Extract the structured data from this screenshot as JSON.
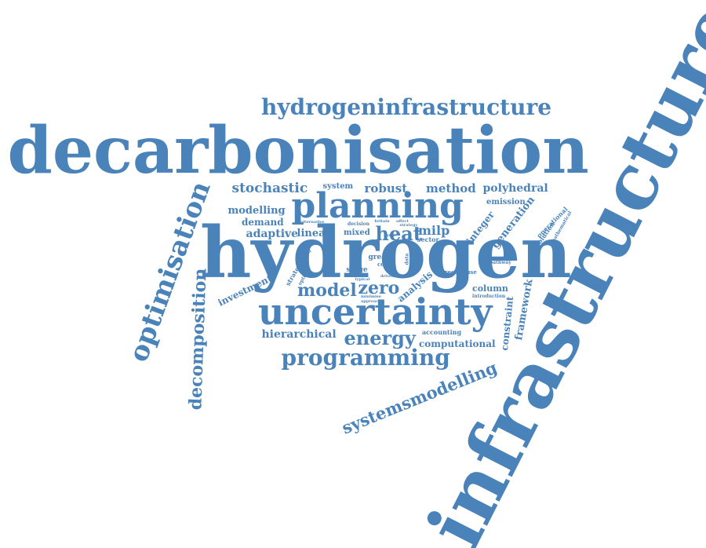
{
  "color": "#4a83b9",
  "words": [
    {
      "key": "decarbonisation",
      "text": "decarbonisation",
      "importance": 1.0,
      "orientation": "horizontal"
    },
    {
      "key": "infrastructure",
      "text": "infrastructure",
      "importance": 1.0,
      "orientation": "vertical"
    },
    {
      "key": "hydrogen",
      "text": "hydrogen",
      "importance": 0.95,
      "orientation": "horizontal"
    },
    {
      "key": "uncertainty",
      "text": "uncertainty",
      "importance": 0.65,
      "orientation": "horizontal"
    },
    {
      "key": "planning",
      "text": "planning",
      "importance": 0.55,
      "orientation": "horizontal"
    },
    {
      "key": "optimisation",
      "text": "optimisation",
      "importance": 0.45,
      "orientation": "vertical"
    },
    {
      "key": "hydrogeninfrastructure",
      "text": "hydrogeninfrastructure",
      "importance": 0.35,
      "orientation": "horizontal"
    },
    {
      "key": "programming",
      "text": "programming",
      "importance": 0.35,
      "orientation": "horizontal"
    },
    {
      "key": "decomposition",
      "text": "decomposition",
      "importance": 0.3,
      "orientation": "vertical"
    },
    {
      "key": "systemsmodelling",
      "text": "systemsmodelling",
      "importance": 0.3,
      "orientation": "diagonal"
    },
    {
      "key": "energy",
      "text": "energy",
      "importance": 0.3,
      "orientation": "horizontal"
    },
    {
      "key": "heat",
      "text": "heat",
      "importance": 0.3,
      "orientation": "horizontal"
    },
    {
      "key": "zero",
      "text": "zero",
      "importance": 0.25,
      "orientation": "horizontal"
    },
    {
      "key": "model",
      "text": "model",
      "importance": 0.25,
      "orientation": "horizontal"
    },
    {
      "key": "stochastic",
      "text": "stochastic",
      "importance": 0.2,
      "orientation": "horizontal"
    },
    {
      "key": "robust",
      "text": "robust",
      "importance": 0.2,
      "orientation": "horizontal"
    },
    {
      "key": "method",
      "text": "method",
      "importance": 0.2,
      "orientation": "horizontal"
    },
    {
      "key": "polyhedral",
      "text": "polyhedral",
      "importance": 0.2,
      "orientation": "horizontal"
    },
    {
      "key": "hierarchical",
      "text": "hierarchical",
      "importance": 0.2,
      "orientation": "horizontal"
    },
    {
      "key": "framework",
      "text": "framework",
      "importance": 0.15,
      "orientation": "vertical"
    },
    {
      "key": "constraint",
      "text": "constraint",
      "importance": 0.15,
      "orientation": "vertical"
    },
    {
      "key": "generation",
      "text": "generation",
      "importance": 0.15,
      "orientation": "diagonal"
    },
    {
      "key": "integer",
      "text": "integer",
      "importance": 0.15,
      "orientation": "diagonal"
    },
    {
      "key": "milp",
      "text": "milp",
      "importance": 0.15,
      "orientation": "horizontal"
    },
    {
      "key": "analysis",
      "text": "analysis",
      "importance": 0.15,
      "orientation": "diagonal"
    },
    {
      "key": "modelling",
      "text": "modelling",
      "importance": 0.15,
      "orientation": "horizontal"
    },
    {
      "key": "demand",
      "text": "demand",
      "importance": 0.15,
      "orientation": "horizontal"
    },
    {
      "key": "adaptive",
      "text": "adaptive",
      "importance": 0.15,
      "orientation": "horizontal"
    },
    {
      "key": "linear",
      "text": "linear",
      "importance": 0.15,
      "orientation": "horizontal"
    },
    {
      "key": "computational",
      "text": "computational",
      "importance": 0.15,
      "orientation": "horizontal"
    },
    {
      "key": "investment",
      "text": "investment",
      "importance": 0.15,
      "orientation": "diagonal"
    },
    {
      "key": "column",
      "text": "column",
      "importance": 0.15,
      "orientation": "horizontal"
    },
    {
      "key": "emission",
      "text": "emission",
      "importance": 0.12,
      "orientation": "horizontal"
    },
    {
      "key": "system",
      "text": "system",
      "importance": 0.12,
      "orientation": "horizontal"
    },
    {
      "key": "operational",
      "text": "operational",
      "importance": 0.1,
      "orientation": "diagonal"
    },
    {
      "key": "resolution",
      "text": "resolution",
      "importance": 0.1,
      "orientation": "diagonal"
    },
    {
      "key": "mathematical",
      "text": "mathematical",
      "importance": 0.08,
      "orientation": "diagonal"
    },
    {
      "key": "mixed",
      "text": "mixed",
      "importance": 0.1,
      "orientation": "horizontal"
    },
    {
      "key": "sector",
      "text": "sector",
      "importance": 0.1,
      "orientation": "horizontal"
    },
    {
      "key": "stage",
      "text": "stage",
      "importance": 0.1,
      "orientation": "horizontal"
    },
    {
      "key": "great",
      "text": "great",
      "importance": 0.1,
      "orientation": "horizontal"
    },
    {
      "key": "cost",
      "text": "cost",
      "importance": 0.08,
      "orientation": "horizontal"
    },
    {
      "key": "strategic",
      "text": "strategic",
      "importance": 0.1,
      "orientation": "diagonal"
    },
    {
      "key": "optimal",
      "text": "optimal",
      "importance": 0.08,
      "orientation": "diagonal"
    },
    {
      "key": "greenhouse",
      "text": "greenhouse",
      "importance": 0.08,
      "orientation": "horizontal"
    },
    {
      "key": "pathway",
      "text": "pathway",
      "importance": 0.08,
      "orientation": "horizontal"
    },
    {
      "key": "introduction",
      "text": "introduction",
      "importance": 0.07,
      "orientation": "horizontal"
    },
    {
      "key": "accounting",
      "text": "accounting",
      "importance": 0.07,
      "orientation": "horizontal"
    },
    {
      "key": "decision",
      "text": "decision",
      "importance": 0.07,
      "orientation": "horizontal"
    },
    {
      "key": "alternative",
      "text": "alternative",
      "importance": 0.06,
      "orientation": "horizontal"
    },
    {
      "key": "britain",
      "text": "britain",
      "importance": 0.05,
      "orientation": "horizontal"
    },
    {
      "key": "affect",
      "text": "affect",
      "importance": 0.05,
      "orientation": "horizontal"
    },
    {
      "key": "result",
      "text": "result",
      "importance": 0.06,
      "orientation": "diagonal"
    },
    {
      "key": "solution",
      "text": "solution",
      "importance": 0.06,
      "orientation": "diagonal"
    },
    {
      "key": "typical",
      "text": "typical",
      "importance": 0.05,
      "orientation": "horizontal"
    },
    {
      "key": "minimise",
      "text": "minimise",
      "importance": 0.05,
      "orientation": "horizontal"
    },
    {
      "key": "approach",
      "text": "approach",
      "importance": 0.05,
      "orientation": "horizontal"
    },
    {
      "key": "driven",
      "text": "driven",
      "importance": 0.05,
      "orientation": "horizontal"
    },
    {
      "key": "data",
      "text": "data",
      "importance": 0.06,
      "orientation": "vertical"
    },
    {
      "key": "strategy",
      "text": "strategy",
      "importance": 0.05,
      "orientation": "horizontal"
    },
    {
      "key": "year",
      "text": "year",
      "importance": 0.05,
      "orientation": "horizontal"
    }
  ]
}
